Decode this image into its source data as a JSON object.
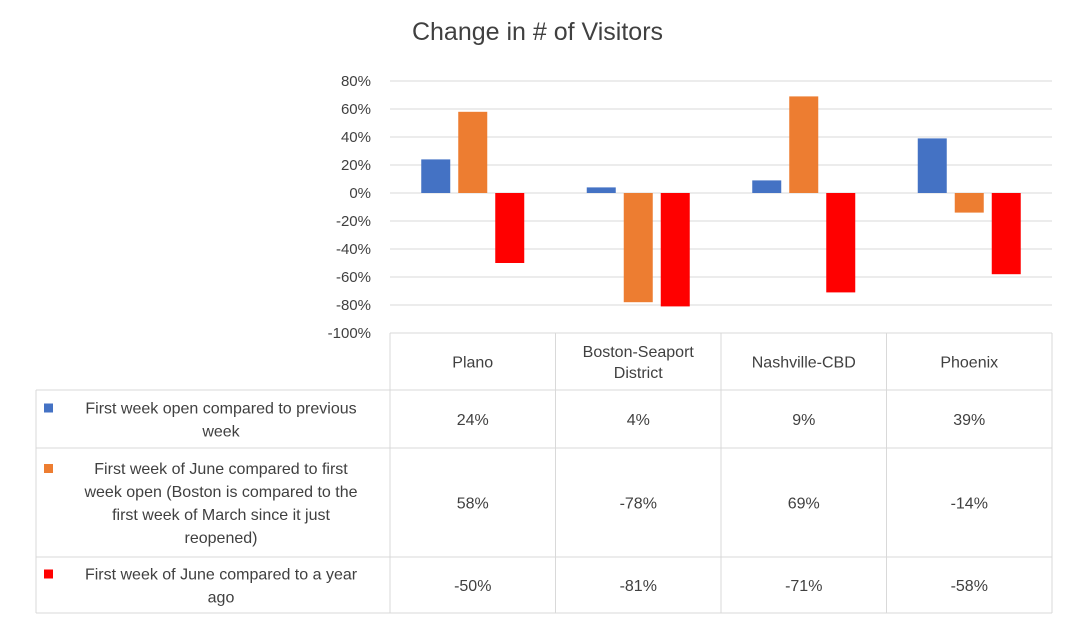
{
  "chart_data": {
    "type": "bar",
    "title": "Change in # of Visitors",
    "categories": [
      "Plano",
      "Boston-Seaport District",
      "Nashville-CBD",
      "Phoenix"
    ],
    "category_lines": [
      [
        "Plano"
      ],
      [
        "Boston-Seaport",
        "District"
      ],
      [
        "Nashville-CBD"
      ],
      [
        "Phoenix"
      ]
    ],
    "series": [
      {
        "name": "First week open compared to previous week",
        "name_lines": [
          "First week open compared to previous",
          "week"
        ],
        "color": "#4472C4",
        "values": [
          24,
          4,
          9,
          39
        ],
        "labels": [
          "24%",
          "4%",
          "9%",
          "39%"
        ]
      },
      {
        "name": "First week of June compared to first week open (Boston is compared to the first week of March since it just reopened)",
        "name_lines": [
          "First week of June compared to first",
          "week open (Boston is compared to the",
          "first week of March since it just",
          "reopened)"
        ],
        "color": "#ED7D31",
        "values": [
          58,
          -78,
          69,
          -14
        ],
        "labels": [
          "58%",
          "-78%",
          "69%",
          "-14%"
        ]
      },
      {
        "name": "First week of June compared to a year ago",
        "name_lines": [
          "First week of June compared to a year",
          "ago"
        ],
        "color": "#FF0000",
        "values": [
          -50,
          -81,
          -71,
          -58
        ],
        "labels": [
          "-50%",
          "-81%",
          "-71%",
          "-58%"
        ]
      }
    ],
    "ylim": [
      -100,
      80
    ],
    "yticks": [
      80,
      60,
      40,
      20,
      0,
      -20,
      -40,
      -60,
      -80,
      -100
    ],
    "ytick_labels": [
      "80%",
      "60%",
      "40%",
      "20%",
      "0%",
      "-20%",
      "-40%",
      "-60%",
      "-80%",
      "-100%"
    ],
    "grid": true,
    "legend": "data-table"
  }
}
